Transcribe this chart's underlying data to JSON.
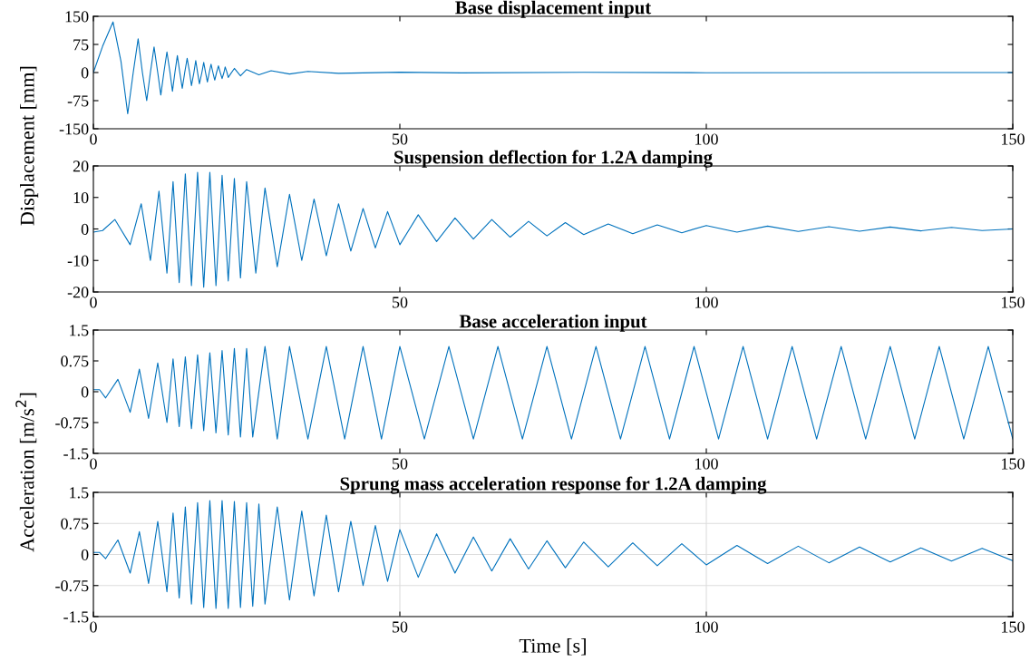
{
  "chart_data": [
    {
      "type": "line",
      "title": "Base displacement input",
      "ylabel": "Displacement [mm]",
      "xlim": [
        0,
        150
      ],
      "xticks": [
        0,
        50,
        100,
        150
      ],
      "ylim": [
        -150,
        150
      ],
      "yticks": [
        -150,
        -75,
        0,
        75,
        150
      ],
      "grid": false,
      "legend": false,
      "series": [
        {
          "color": "#0072bd",
          "x": [
            0,
            1.5,
            3.2,
            4.5,
            5.6,
            6.5,
            7.3,
            8,
            8.7,
            9.3,
            9.9,
            10.5,
            11,
            11.5,
            12,
            12.5,
            12.9,
            13.3,
            13.7,
            14.1,
            14.5,
            14.9,
            15.3,
            15.7,
            16,
            16.4,
            16.7,
            17,
            17.3,
            17.7,
            18,
            18.3,
            18.6,
            18.9,
            19.2,
            19.5,
            19.8,
            20.1,
            20.4,
            20.7,
            21,
            21.3,
            21.5,
            21.8,
            22,
            23,
            24,
            25,
            27,
            29,
            32,
            35,
            40,
            50,
            60,
            80,
            100,
            150
          ],
          "values": [
            0,
            70,
            135,
            30,
            -110,
            0,
            90,
            0,
            -75,
            0,
            68,
            0,
            -60,
            0,
            55,
            0,
            -50,
            0,
            45,
            0,
            -42,
            0,
            38,
            0,
            -35,
            0,
            32,
            0,
            -30,
            0,
            27,
            0,
            -25,
            0,
            22,
            0,
            -20,
            0,
            18,
            0,
            -16,
            0,
            15,
            0,
            -13,
            11,
            -9,
            8,
            -6,
            5,
            -4,
            3,
            -2,
            1,
            -1,
            0.5,
            -0.5,
            0
          ]
        }
      ]
    },
    {
      "type": "line",
      "title": "Suspension deflection for 1.2A damping",
      "xlim": [
        0,
        150
      ],
      "xticks": [
        0,
        50,
        100,
        150
      ],
      "ylim": [
        -20,
        20
      ],
      "yticks": [
        -20,
        -10,
        0,
        10,
        20
      ],
      "grid": false,
      "legend": false,
      "series": [
        {
          "color": "#0072bd",
          "x": [
            0,
            1.5,
            3.5,
            6,
            7.8,
            9.3,
            10.7,
            12,
            13,
            14,
            15,
            16,
            17,
            18,
            19,
            20,
            21,
            22,
            23,
            24,
            25,
            26.5,
            28,
            30,
            32,
            34,
            36,
            38,
            40,
            42,
            44,
            46,
            48,
            50,
            53,
            56,
            59,
            62,
            65,
            68,
            71,
            74,
            77,
            80,
            84,
            88,
            92,
            96,
            100,
            105,
            110,
            115,
            120,
            125,
            130,
            135,
            140,
            145,
            150
          ],
          "values": [
            -1,
            -0.5,
            3,
            -5,
            8,
            -10,
            12,
            -14,
            15,
            -17,
            17.5,
            -18,
            18,
            -18.5,
            18,
            -18,
            17,
            -16.5,
            16,
            -15.5,
            15,
            -14,
            13,
            -12,
            11,
            -10,
            9.5,
            -8.5,
            8,
            -7,
            6.5,
            -6,
            5.5,
            -5,
            4.5,
            -4,
            3.5,
            -3.2,
            3,
            -2.6,
            2.4,
            -2.2,
            2,
            -1.8,
            1.6,
            -1.5,
            1.3,
            -1.2,
            1.1,
            -1,
            0.9,
            -0.8,
            0.7,
            -0.7,
            0.6,
            -0.6,
            0.5,
            -0.5,
            0
          ]
        }
      ]
    },
    {
      "type": "line",
      "title": "Base acceleration input",
      "ylabel": "Acceleration [m/s$^{2}$]",
      "xlim": [
        0,
        150
      ],
      "xticks": [
        0,
        50,
        100,
        150
      ],
      "ylim": [
        -1.5,
        1.5
      ],
      "yticks": [
        -1.5,
        -0.75,
        0,
        0.75,
        1.5
      ],
      "grid": false,
      "legend": false,
      "series": [
        {
          "color": "#0072bd",
          "x": [
            0,
            1,
            2,
            4,
            6,
            7.5,
            9,
            10.5,
            12,
            13,
            14,
            15,
            16,
            17,
            18,
            19,
            20,
            21,
            22,
            23,
            24,
            25,
            26,
            28,
            30,
            32,
            35,
            38,
            41,
            44,
            47,
            50,
            54,
            58,
            62,
            66,
            70,
            74,
            78,
            82,
            86,
            90,
            94,
            98,
            102,
            106,
            110,
            114,
            118,
            122,
            126,
            130,
            134,
            138,
            142,
            146,
            150
          ],
          "values": [
            0.05,
            0.05,
            -0.15,
            0.3,
            -0.5,
            0.55,
            -0.65,
            0.7,
            -0.75,
            0.8,
            -0.85,
            0.85,
            -0.9,
            0.9,
            -0.95,
            0.95,
            -1,
            1,
            -1.05,
            1.05,
            -1.1,
            1.05,
            -1.1,
            1.1,
            -1.15,
            1.1,
            -1.15,
            1.1,
            -1.15,
            1.1,
            -1.15,
            1.1,
            -1.15,
            1.1,
            -1.15,
            1.1,
            -1.15,
            1.1,
            -1.15,
            1.1,
            -1.15,
            1.1,
            -1.15,
            1.1,
            -1.15,
            1.1,
            -1.15,
            1.1,
            -1.15,
            1.1,
            -1.15,
            1.1,
            -1.15,
            1.1,
            -1.15,
            1.1,
            -1.15
          ]
        }
      ]
    },
    {
      "type": "line",
      "title": "Sprung mass acceleration response for 1.2A damping",
      "xlabel": "Time [s]",
      "xlim": [
        0,
        150
      ],
      "xticks": [
        0,
        50,
        100,
        150
      ],
      "ylim": [
        -1.5,
        1.5
      ],
      "yticks": [
        -1.5,
        -0.75,
        0,
        0.75,
        1.5
      ],
      "grid": true,
      "legend": false,
      "series": [
        {
          "color": "#0072bd",
          "x": [
            0,
            1,
            2,
            4,
            6,
            7.5,
            9,
            10.5,
            12,
            13,
            14,
            15,
            16,
            17,
            18,
            19,
            20,
            21,
            22,
            23,
            24,
            25,
            26,
            27,
            28,
            30,
            32,
            34,
            36,
            38,
            40,
            42,
            44,
            46,
            48,
            50,
            53,
            56,
            59,
            62,
            65,
            68,
            71,
            74,
            77,
            80,
            84,
            88,
            92,
            96,
            100,
            105,
            110,
            115,
            120,
            125,
            130,
            135,
            140,
            145,
            150
          ],
          "values": [
            0.05,
            0.05,
            -0.1,
            0.35,
            -0.45,
            0.55,
            -0.7,
            0.8,
            -0.9,
            1,
            -1.05,
            1.15,
            -1.2,
            1.25,
            -1.28,
            1.3,
            -1.3,
            1.3,
            -1.3,
            1.28,
            -1.28,
            1.25,
            -1.25,
            1.22,
            -1.2,
            1.15,
            -1.1,
            1.05,
            -1,
            0.95,
            -0.9,
            0.8,
            -0.75,
            0.7,
            -0.65,
            0.6,
            -0.55,
            0.5,
            -0.45,
            0.42,
            -0.4,
            0.38,
            -0.35,
            0.33,
            -0.32,
            0.3,
            -0.3,
            0.28,
            -0.27,
            0.26,
            -0.25,
            0.22,
            -0.22,
            0.2,
            -0.2,
            0.18,
            -0.18,
            0.16,
            -0.16,
            0.15,
            -0.15
          ]
        }
      ]
    }
  ]
}
